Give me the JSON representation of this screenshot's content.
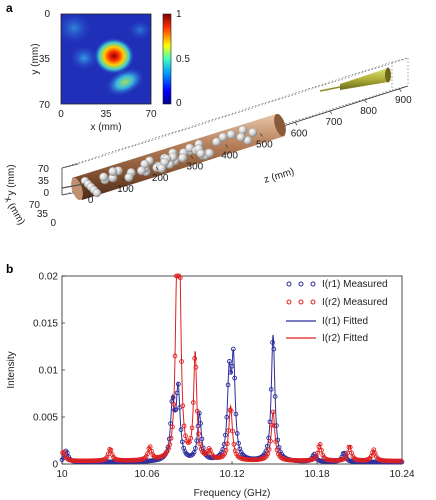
{
  "panel_a": {
    "label": "a",
    "heatmap": {
      "x_label": "x (mm)",
      "y_label": "y (mm)",
      "x_ticks": [
        "0",
        "35",
        "70"
      ],
      "y_ticks": [
        "0",
        "35",
        "70"
      ],
      "colorbar_ticks": [
        "1",
        "0.5",
        "0"
      ]
    },
    "scene3d": {
      "z_label": "z (mm)",
      "z_ticks": [
        "0",
        "100",
        "200",
        "300",
        "400",
        "500",
        "600",
        "700",
        "800",
        "900"
      ],
      "y_label": "y (mm)",
      "y_ticks": [
        "70",
        "35",
        "0"
      ],
      "x_label": "x (mm)",
      "x_ticks": [
        "70",
        "35",
        "0"
      ]
    }
  },
  "panel_b": {
    "label": "b",
    "legend": [
      {
        "text": "I(r1) Measured",
        "style": "marker",
        "color": "#2c2c9c"
      },
      {
        "text": "I(r2) Measured",
        "style": "marker",
        "color": "#e02020"
      },
      {
        "text": "I(r1) Fitted",
        "style": "line",
        "color": "#2c2c9c"
      },
      {
        "text": "I(r2) Fitted",
        "style": "line",
        "color": "#e02020"
      }
    ]
  },
  "chart_data": {
    "type": "line",
    "xlabel": "Frequency (GHz)",
    "ylabel": "Intensity",
    "xlim": [
      10,
      10.24
    ],
    "ylim": [
      0,
      0.02
    ],
    "x_ticks": [
      "10",
      "10.06",
      "10.12",
      "10.18",
      "10.24"
    ],
    "y_ticks": [
      "0",
      "0.005",
      "0.01",
      "0.015",
      "0.02"
    ],
    "legend_position": "top-right",
    "series": [
      {
        "name": "I(r1) Measured / Fitted",
        "color": "#2c2c9c",
        "peaks": [
          {
            "f": 10.003,
            "a": 0.0012,
            "w": 0.0015
          },
          {
            "f": 10.078,
            "a": 0.006,
            "w": 0.0016
          },
          {
            "f": 10.082,
            "a": 0.0075,
            "w": 0.0016
          },
          {
            "f": 10.097,
            "a": 0.005,
            "w": 0.0016
          },
          {
            "f": 10.118,
            "a": 0.0085,
            "w": 0.0015
          },
          {
            "f": 10.121,
            "a": 0.0102,
            "w": 0.0015
          },
          {
            "f": 10.149,
            "a": 0.0135,
            "w": 0.0015
          },
          {
            "f": 10.178,
            "a": 0.0008,
            "w": 0.0015
          },
          {
            "f": 10.199,
            "a": 0.001,
            "w": 0.0015
          }
        ],
        "baseline": 0.0002
      },
      {
        "name": "I(r2) Measured / Fitted",
        "color": "#e02020",
        "peaks": [
          {
            "f": 10.001,
            "a": 0.001,
            "w": 0.0015
          },
          {
            "f": 10.034,
            "a": 0.0013,
            "w": 0.0015
          },
          {
            "f": 10.062,
            "a": 0.0014,
            "w": 0.0015
          },
          {
            "f": 10.081,
            "a": 0.016,
            "w": 0.0013
          },
          {
            "f": 10.083,
            "a": 0.018,
            "w": 0.0013
          },
          {
            "f": 10.094,
            "a": 0.0113,
            "w": 0.0013
          },
          {
            "f": 10.104,
            "a": 0.001,
            "w": 0.0015
          },
          {
            "f": 10.119,
            "a": 0.0058,
            "w": 0.0015
          },
          {
            "f": 10.149,
            "a": 0.0052,
            "w": 0.0015
          },
          {
            "f": 10.182,
            "a": 0.0018,
            "w": 0.0015
          },
          {
            "f": 10.203,
            "a": 0.0016,
            "w": 0.0015
          },
          {
            "f": 10.22,
            "a": 0.0012,
            "w": 0.0015
          }
        ],
        "baseline": 0.0003
      }
    ]
  }
}
